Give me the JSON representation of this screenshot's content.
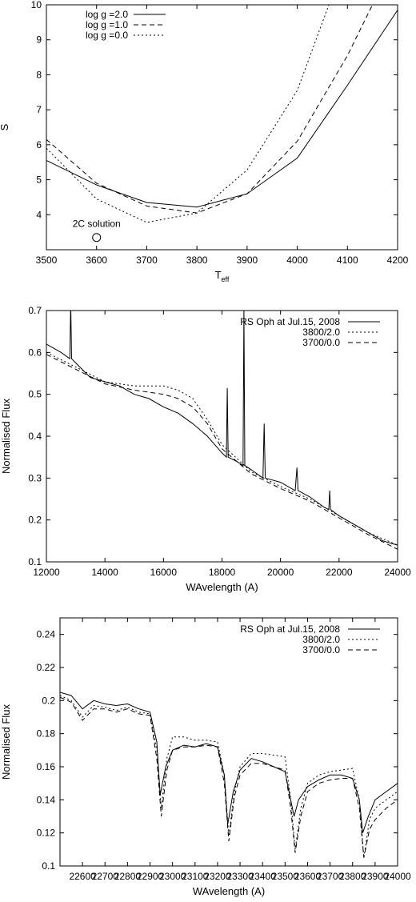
{
  "chart_data": [
    {
      "type": "line",
      "xlabel": "T",
      "xlabel_sub": "eff",
      "ylabel": "S",
      "xlim": [
        3500,
        4200
      ],
      "ylim": [
        3,
        10
      ],
      "xticks": [
        3500,
        3600,
        3700,
        3800,
        3900,
        4000,
        4100,
        4200
      ],
      "yticks": [
        4,
        5,
        6,
        7,
        8,
        9,
        10
      ],
      "grid": false,
      "legend_position": "top-left",
      "series": [
        {
          "name": "log g =2.0",
          "style": "solid",
          "x": [
            3500,
            3600,
            3700,
            3800,
            3900,
            4000,
            4100,
            4200
          ],
          "y": [
            5.55,
            4.85,
            4.35,
            4.22,
            4.6,
            5.62,
            7.7,
            9.85
          ]
        },
        {
          "name": "log g =1.0",
          "style": "dashed",
          "x": [
            3500,
            3600,
            3700,
            3800,
            3900,
            4000,
            4100,
            4150
          ],
          "y": [
            6.15,
            4.9,
            4.25,
            4.05,
            4.6,
            6.1,
            8.55,
            10.0
          ]
        },
        {
          "name": "log g =0.0",
          "style": "dotted",
          "x": [
            3500,
            3600,
            3700,
            3800,
            3900,
            4000,
            4063
          ],
          "y": [
            5.9,
            4.45,
            3.78,
            4.05,
            5.28,
            7.55,
            10.0
          ]
        }
      ],
      "annotations": [
        {
          "text": "2C solution",
          "x": 3600,
          "y": 3.35
        }
      ]
    },
    {
      "type": "line",
      "xlabel": "WAvelength (A)",
      "ylabel": "Normalised Flux",
      "xlim": [
        12000,
        24000
      ],
      "ylim": [
        0.1,
        0.7
      ],
      "xticks": [
        12000,
        14000,
        16000,
        18000,
        20000,
        22000,
        24000
      ],
      "yticks": [
        0.1,
        0.2,
        0.3,
        0.4,
        0.5,
        0.6,
        0.7
      ],
      "grid": false,
      "legend_position": "top-right",
      "series": [
        {
          "name": "RS Oph at Jul.15, 2008",
          "style": "solid",
          "x": [
            12000,
            12500,
            12800,
            12830,
            12860,
            13000,
            13500,
            14000,
            14500,
            15000,
            15500,
            16000,
            16500,
            17000,
            17500,
            18000,
            18150,
            18180,
            18210,
            18500,
            18720,
            18750,
            18780,
            19000,
            19400,
            19440,
            19480,
            20000,
            20500,
            20560,
            20600,
            21000,
            21500,
            21650,
            21680,
            21710,
            22000,
            22500,
            23000,
            23500,
            24000
          ],
          "y": [
            0.62,
            0.6,
            0.585,
            0.72,
            0.585,
            0.575,
            0.54,
            0.53,
            0.52,
            0.5,
            0.49,
            0.47,
            0.455,
            0.43,
            0.4,
            0.36,
            0.35,
            0.515,
            0.35,
            0.34,
            0.33,
            0.7,
            0.33,
            0.32,
            0.3,
            0.43,
            0.3,
            0.29,
            0.27,
            0.325,
            0.27,
            0.255,
            0.23,
            0.225,
            0.27,
            0.225,
            0.21,
            0.19,
            0.17,
            0.15,
            0.14
          ]
        },
        {
          "name": "3800/2.0",
          "style": "dotted",
          "x": [
            12000,
            13000,
            14000,
            15000,
            16000,
            16500,
            17000,
            17500,
            18000,
            19000,
            20000,
            21000,
            22000,
            23000,
            24000
          ],
          "y": [
            0.6,
            0.565,
            0.53,
            0.52,
            0.52,
            0.51,
            0.49,
            0.44,
            0.38,
            0.315,
            0.28,
            0.25,
            0.21,
            0.17,
            0.14
          ]
        },
        {
          "name": "3700/0.0",
          "style": "dashed",
          "x": [
            12000,
            13000,
            14000,
            15000,
            16000,
            16500,
            17000,
            17500,
            18000,
            19000,
            20000,
            21000,
            22000,
            23000,
            24000
          ],
          "y": [
            0.595,
            0.56,
            0.525,
            0.51,
            0.5,
            0.49,
            0.47,
            0.43,
            0.37,
            0.31,
            0.275,
            0.245,
            0.205,
            0.165,
            0.13
          ]
        }
      ]
    },
    {
      "type": "line",
      "xlabel": "WAvelength (A)",
      "ylabel": "Normalised Flux",
      "xlim": [
        22500,
        24000
      ],
      "ylim": [
        0.1,
        0.25
      ],
      "xticks": [
        22600,
        22700,
        22800,
        22900,
        23000,
        23100,
        23200,
        23300,
        23400,
        23500,
        23600,
        23700,
        23800,
        23900,
        24000
      ],
      "yticks": [
        0.1,
        0.12,
        0.14,
        0.16,
        0.18,
        0.2,
        0.22,
        0.24
      ],
      "grid": false,
      "legend_position": "top-right",
      "series": [
        {
          "name": "RS Oph at Jul.15, 2008",
          "style": "solid",
          "x": [
            22500,
            22550,
            22600,
            22650,
            22700,
            22750,
            22800,
            22850,
            22900,
            22930,
            22945,
            22970,
            23000,
            23050,
            23100,
            23150,
            23200,
            23230,
            23245,
            23270,
            23300,
            23350,
            23400,
            23450,
            23500,
            23525,
            23540,
            23560,
            23600,
            23650,
            23700,
            23750,
            23800,
            23830,
            23845,
            23870,
            23900,
            23950,
            24000
          ],
          "y": [
            0.205,
            0.203,
            0.195,
            0.2,
            0.198,
            0.197,
            0.198,
            0.195,
            0.193,
            0.175,
            0.143,
            0.16,
            0.17,
            0.173,
            0.172,
            0.174,
            0.172,
            0.155,
            0.125,
            0.145,
            0.158,
            0.165,
            0.163,
            0.16,
            0.157,
            0.14,
            0.13,
            0.14,
            0.148,
            0.152,
            0.155,
            0.155,
            0.153,
            0.14,
            0.12,
            0.13,
            0.14,
            0.145,
            0.15
          ]
        },
        {
          "name": "3800/2.0",
          "style": "dotted",
          "x": [
            22500,
            22550,
            22600,
            22650,
            22700,
            22750,
            22800,
            22850,
            22900,
            22930,
            22950,
            22975,
            23000,
            23050,
            23100,
            23150,
            23200,
            23230,
            23250,
            23275,
            23300,
            23350,
            23400,
            23450,
            23500,
            23525,
            23545,
            23570,
            23600,
            23650,
            23700,
            23750,
            23800,
            23830,
            23850,
            23875,
            23900,
            23950,
            24000
          ],
          "y": [
            0.203,
            0.2,
            0.19,
            0.197,
            0.196,
            0.194,
            0.196,
            0.193,
            0.192,
            0.17,
            0.135,
            0.165,
            0.178,
            0.178,
            0.176,
            0.176,
            0.175,
            0.155,
            0.118,
            0.145,
            0.16,
            0.168,
            0.168,
            0.167,
            0.166,
            0.14,
            0.11,
            0.135,
            0.15,
            0.155,
            0.157,
            0.158,
            0.159,
            0.14,
            0.105,
            0.128,
            0.135,
            0.14,
            0.145
          ]
        },
        {
          "name": "3700/0.0",
          "style": "dashed",
          "x": [
            22500,
            22550,
            22600,
            22650,
            22700,
            22750,
            22800,
            22850,
            22900,
            22930,
            22950,
            22975,
            23000,
            23050,
            23100,
            23150,
            23200,
            23230,
            23250,
            23275,
            23300,
            23350,
            23400,
            23450,
            23500,
            23525,
            23545,
            23570,
            23600,
            23650,
            23700,
            23750,
            23800,
            23830,
            23850,
            23875,
            23900,
            23950,
            24000
          ],
          "y": [
            0.202,
            0.199,
            0.188,
            0.195,
            0.195,
            0.193,
            0.195,
            0.192,
            0.191,
            0.165,
            0.13,
            0.158,
            0.17,
            0.172,
            0.172,
            0.173,
            0.172,
            0.15,
            0.115,
            0.142,
            0.155,
            0.162,
            0.162,
            0.16,
            0.158,
            0.135,
            0.108,
            0.13,
            0.145,
            0.15,
            0.152,
            0.153,
            0.153,
            0.135,
            0.105,
            0.122,
            0.128,
            0.135,
            0.14
          ]
        }
      ]
    }
  ]
}
